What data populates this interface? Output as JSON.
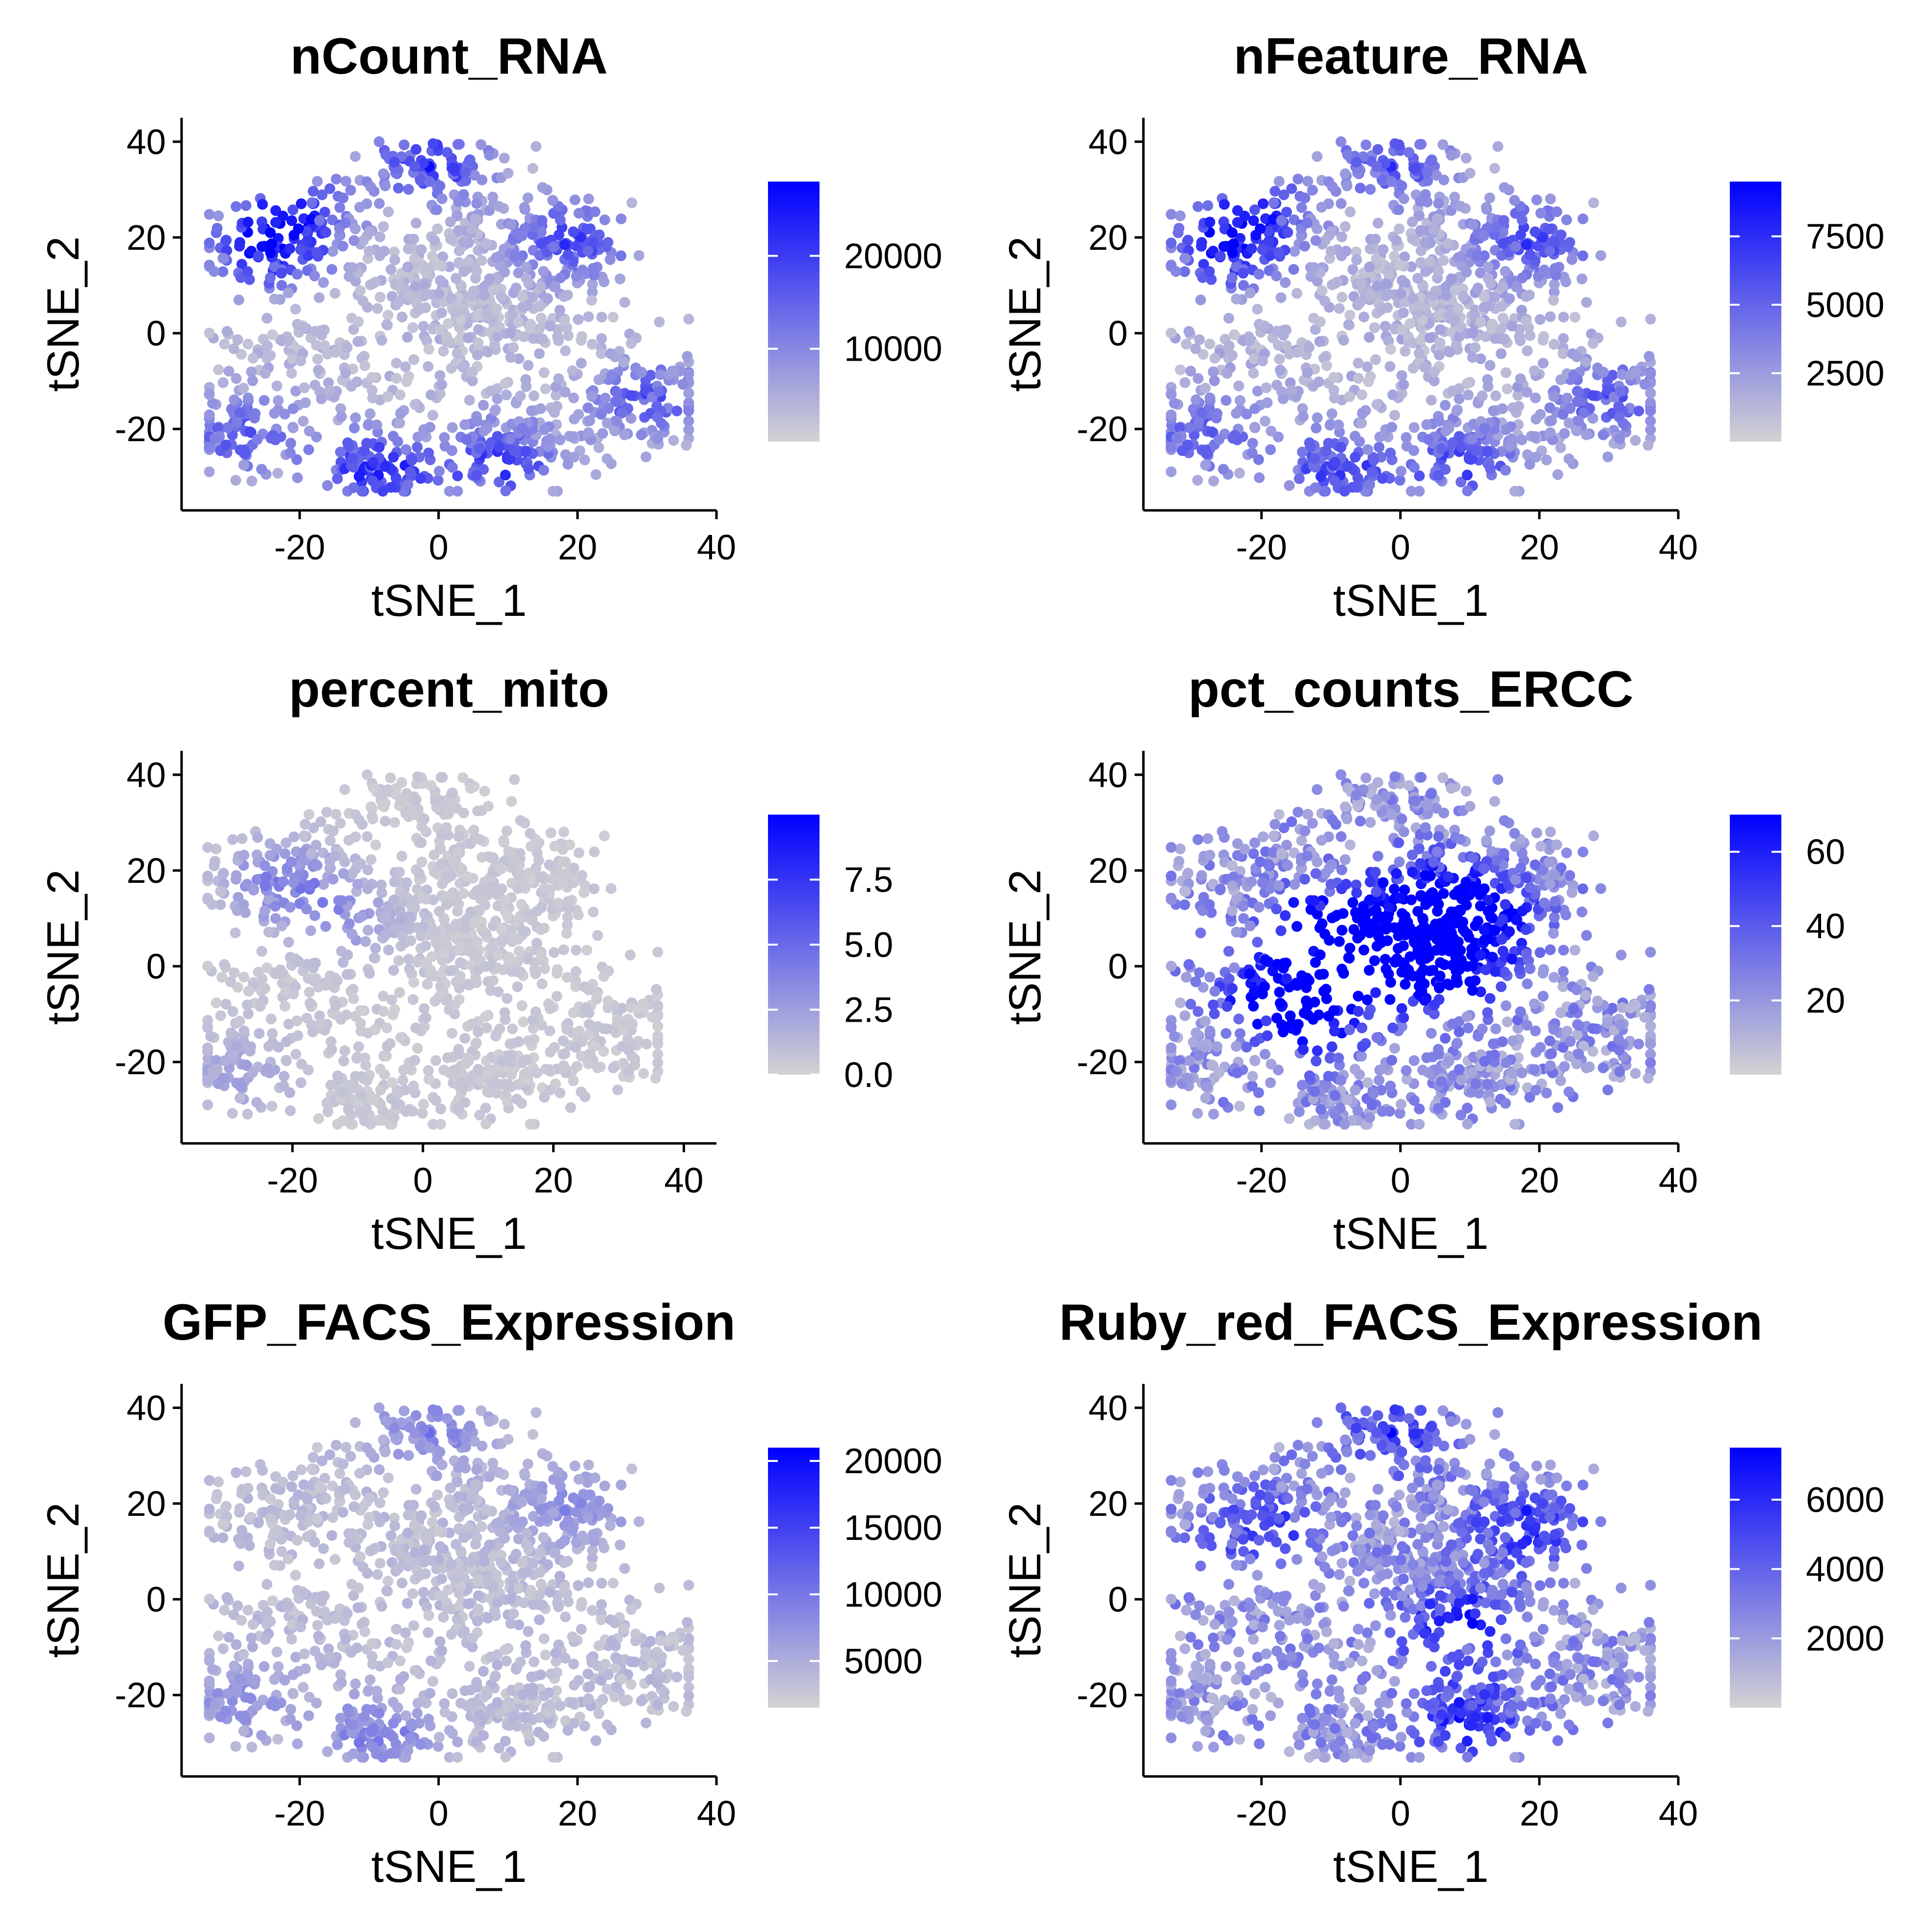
{
  "chart_data": [
    {
      "type": "scatter",
      "title": "nCount_RNA",
      "xlabel": "tSNE_1",
      "ylabel": "tSNE_2",
      "xlim": [
        -37,
        40
      ],
      "ylim": [
        -37,
        45
      ],
      "xticks": [
        -20,
        0,
        20,
        40
      ],
      "yticks": [
        -20,
        0,
        20,
        40
      ],
      "color_scale": {
        "low": "#d3d3d3",
        "high": "#0000ff",
        "min": 0,
        "max": 28000
      },
      "legend_ticks": [
        10000,
        20000
      ],
      "legend_labels": [
        "10000",
        "20000"
      ],
      "high_regions": [
        [
          -25,
          18,
          0.75
        ],
        [
          -9,
          -29,
          0.7
        ],
        [
          -1,
          36,
          0.65
        ],
        [
          19,
          20,
          0.6
        ],
        [
          9,
          -27,
          0.6
        ],
        [
          30,
          -14,
          0.5
        ],
        [
          -28,
          -21,
          0.5
        ],
        [
          -21,
          26,
          0.55
        ]
      ],
      "base_level": 0.12
    },
    {
      "type": "scatter",
      "title": "nFeature_RNA",
      "xlabel": "tSNE_1",
      "ylabel": "tSNE_2",
      "xlim": [
        -37,
        40
      ],
      "ylim": [
        -37,
        45
      ],
      "xticks": [
        -20,
        0,
        20,
        40
      ],
      "yticks": [
        -20,
        0,
        20,
        40
      ],
      "color_scale": {
        "low": "#d3d3d3",
        "high": "#0000ff",
        "min": 0,
        "max": 9500
      },
      "legend_ticks": [
        2500,
        5000,
        7500
      ],
      "legend_labels": [
        "2500",
        "5000",
        "7500"
      ],
      "high_regions": [
        [
          -25,
          18,
          0.7
        ],
        [
          -9,
          -29,
          0.55
        ],
        [
          -1,
          36,
          0.5
        ],
        [
          19,
          20,
          0.55
        ],
        [
          9,
          -27,
          0.5
        ],
        [
          30,
          -14,
          0.45
        ],
        [
          -28,
          -21,
          0.45
        ],
        [
          -21,
          26,
          0.5
        ]
      ],
      "base_level": 0.15
    },
    {
      "type": "scatter",
      "title": "percent_mito",
      "xlabel": "tSNE_1",
      "ylabel": "tSNE_2",
      "xlim": [
        -37,
        45
      ],
      "ylim": [
        -37,
        45
      ],
      "xticks": [
        -20,
        0,
        20,
        40
      ],
      "yticks": [
        -20,
        0,
        20,
        40
      ],
      "color_scale": {
        "low": "#d3d3d3",
        "high": "#0000ff",
        "min": 0,
        "max": 10
      },
      "legend_ticks": [
        0,
        2.5,
        5,
        7.5
      ],
      "legend_labels": [
        "0.0",
        "2.5",
        "5.0",
        "7.5"
      ],
      "high_regions": [
        [
          -22,
          18,
          0.35
        ],
        [
          -12,
          10,
          0.25
        ],
        [
          -28,
          -22,
          0.2
        ]
      ],
      "base_level": 0.05
    },
    {
      "type": "scatter",
      "title": "pct_counts_ERCC",
      "xlabel": "tSNE_1",
      "ylabel": "tSNE_2",
      "xlim": [
        -37,
        40
      ],
      "ylim": [
        -37,
        45
      ],
      "xticks": [
        -20,
        0,
        20,
        40
      ],
      "yticks": [
        -20,
        0,
        20,
        40
      ],
      "color_scale": {
        "low": "#d3d3d3",
        "high": "#0000ff",
        "min": 0,
        "max": 70
      },
      "legend_ticks": [
        20,
        40,
        60
      ],
      "legend_labels": [
        "20",
        "40",
        "60"
      ],
      "high_regions": [
        [
          -3,
          3,
          0.95
        ],
        [
          6,
          0,
          0.95
        ],
        [
          -10,
          8,
          0.85
        ],
        [
          -17,
          -5,
          0.75
        ],
        [
          12,
          10,
          0.7
        ],
        [
          -12,
          -10,
          0.7
        ],
        [
          4,
          14,
          0.8
        ]
      ],
      "base_level": 0.3
    },
    {
      "type": "scatter",
      "title": "GFP_FACS_Expression",
      "xlabel": "tSNE_1",
      "ylabel": "tSNE_2",
      "xlim": [
        -37,
        40
      ],
      "ylim": [
        -37,
        45
      ],
      "xticks": [
        -20,
        0,
        20,
        40
      ],
      "yticks": [
        -20,
        0,
        20,
        40
      ],
      "color_scale": {
        "low": "#d3d3d3",
        "high": "#0000ff",
        "min": 1500,
        "max": 21000
      },
      "legend_ticks": [
        5000,
        10000,
        15000,
        20000
      ],
      "legend_labels": [
        "5000",
        "10000",
        "15000",
        "20000"
      ],
      "high_regions": [
        [
          -1,
          36,
          0.3
        ],
        [
          -9,
          -29,
          0.3
        ],
        [
          19,
          20,
          0.25
        ],
        [
          -28,
          -21,
          0.25
        ]
      ],
      "base_level": 0.1
    },
    {
      "type": "scatter",
      "title": "Ruby_red_FACS_Expression",
      "xlabel": "tSNE_1",
      "ylabel": "tSNE_2",
      "xlim": [
        -37,
        40
      ],
      "ylim": [
        -37,
        45
      ],
      "xticks": [
        -20,
        0,
        20,
        40
      ],
      "yticks": [
        -20,
        0,
        20,
        40
      ],
      "color_scale": {
        "low": "#d3d3d3",
        "high": "#0000ff",
        "min": 0,
        "max": 7500
      },
      "legend_ticks": [
        2000,
        4000,
        6000
      ],
      "legend_labels": [
        "2000",
        "4000",
        "6000"
      ],
      "high_regions": [
        [
          8,
          -5,
          0.55
        ],
        [
          18,
          15,
          0.5
        ],
        [
          10,
          -25,
          0.5
        ],
        [
          -1,
          36,
          0.45
        ],
        [
          -20,
          15,
          0.4
        ]
      ],
      "base_level": 0.3
    }
  ]
}
